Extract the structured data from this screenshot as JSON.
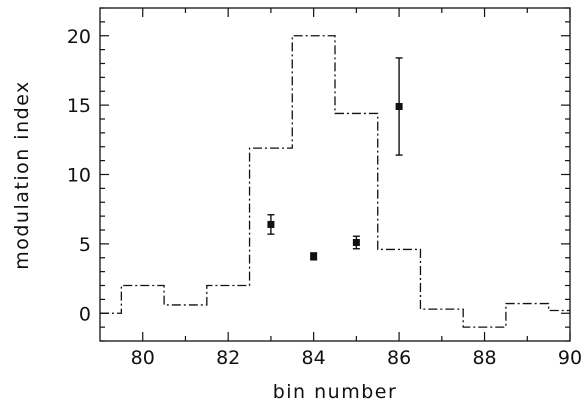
{
  "chart_data": {
    "type": "scatter",
    "title": "",
    "xlabel": "bin number",
    "ylabel": "modulation index",
    "xlim": [
      79,
      90
    ],
    "ylim": [
      -2,
      22
    ],
    "xticks": [
      "80",
      "82",
      "84",
      "86",
      "88",
      "90"
    ],
    "yticks": [
      "0",
      "5",
      "10",
      "15",
      "20"
    ],
    "grid": false,
    "legend": "none",
    "series": [
      {
        "type": "scatter-errorbar",
        "points": [
          {
            "x": 83,
            "y": 6.4,
            "yerr": 0.7
          },
          {
            "x": 84,
            "y": 4.1,
            "yerr": 0.25
          },
          {
            "x": 85,
            "y": 5.1,
            "yerr": 0.45
          },
          {
            "x": 86,
            "y": 14.9,
            "yerr": 3.5
          }
        ]
      },
      {
        "type": "step",
        "line_style": "dash-dot",
        "bins": [
          {
            "x0": 79.0,
            "x1": 79.5,
            "y": 0.0
          },
          {
            "x0": 79.5,
            "x1": 80.5,
            "y": 2.0
          },
          {
            "x0": 80.5,
            "x1": 81.5,
            "y": 0.6
          },
          {
            "x0": 81.5,
            "x1": 82.5,
            "y": 2.0
          },
          {
            "x0": 82.5,
            "x1": 83.5,
            "y": 11.9
          },
          {
            "x0": 83.5,
            "x1": 84.5,
            "y": 20.0
          },
          {
            "x0": 84.5,
            "x1": 85.5,
            "y": 14.4
          },
          {
            "x0": 85.5,
            "x1": 86.5,
            "y": 4.6
          },
          {
            "x0": 86.5,
            "x1": 87.5,
            "y": 0.3
          },
          {
            "x0": 87.5,
            "x1": 88.5,
            "y": -1.0
          },
          {
            "x0": 88.5,
            "x1": 89.5,
            "y": 0.7
          },
          {
            "x0": 89.5,
            "x1": 90.0,
            "y": 0.2
          }
        ]
      }
    ]
  }
}
